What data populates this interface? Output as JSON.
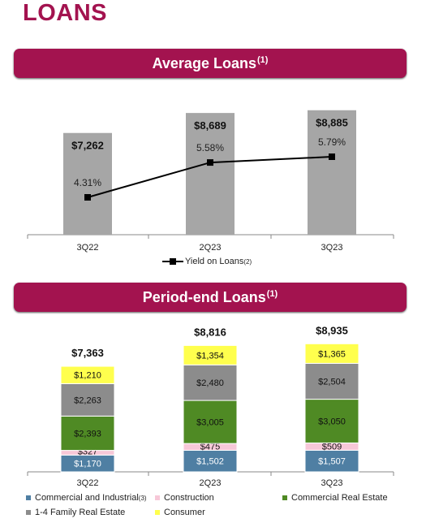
{
  "page": {
    "title": "LOANS"
  },
  "top_banner": {
    "title": "Average Loans",
    "sup": "(1)"
  },
  "bottom_banner": {
    "title": "Period-end Loans",
    "sup": "(1)"
  },
  "chart_data": [
    {
      "type": "bar",
      "title": "Average Loans",
      "categories": [
        "3Q22",
        "2Q23",
        "3Q23"
      ],
      "series": [
        {
          "values": [
            7262,
            8689,
            8885
          ],
          "labels": [
            "$7,262",
            "$8,689",
            "$8,885"
          ],
          "color": "#a6a6a6"
        },
        {
          "name": "Yield on Loans",
          "name_sup": "(2)",
          "type": "line",
          "values": [
            4.31,
            5.58,
            5.79
          ],
          "labels": [
            "4.31%",
            "5.58%",
            "5.79%"
          ],
          "color": "#000000"
        }
      ],
      "legend": "bottom-center"
    },
    {
      "type": "bar",
      "stacked": true,
      "title": "Period-end Loans",
      "categories": [
        "3Q22",
        "2Q23",
        "3Q23"
      ],
      "totals": [
        "$7,363",
        "$8,816",
        "$8,935"
      ],
      "series": [
        {
          "name": "Commercial and Industrial",
          "name_sup": "(3)",
          "values": [
            1170,
            1502,
            1507
          ],
          "labels": [
            "$1,170",
            "$1,502",
            "$1,507"
          ],
          "color": "#4f7fa3"
        },
        {
          "name": "Construction",
          "values": [
            327,
            475,
            509
          ],
          "labels": [
            "$327",
            "$475",
            "$509"
          ],
          "color": "#f7c8d8"
        },
        {
          "name": "Commercial Real Estate",
          "values": [
            2393,
            3005,
            3050
          ],
          "labels": [
            "$2,393",
            "$3,005",
            "$3,050"
          ],
          "color": "#4f8a24"
        },
        {
          "name": "1-4 Family Real Estate",
          "values": [
            2263,
            2480,
            2504
          ],
          "labels": [
            "$2,263",
            "$2,480",
            "$2,504"
          ],
          "color": "#8c8c8c"
        },
        {
          "name": "Consumer",
          "values": [
            1210,
            1354,
            1365
          ],
          "labels": [
            "$1,210",
            "$1,354",
            "$1,365"
          ],
          "color": "#ffff4d"
        }
      ],
      "legend": "bottom"
    }
  ]
}
